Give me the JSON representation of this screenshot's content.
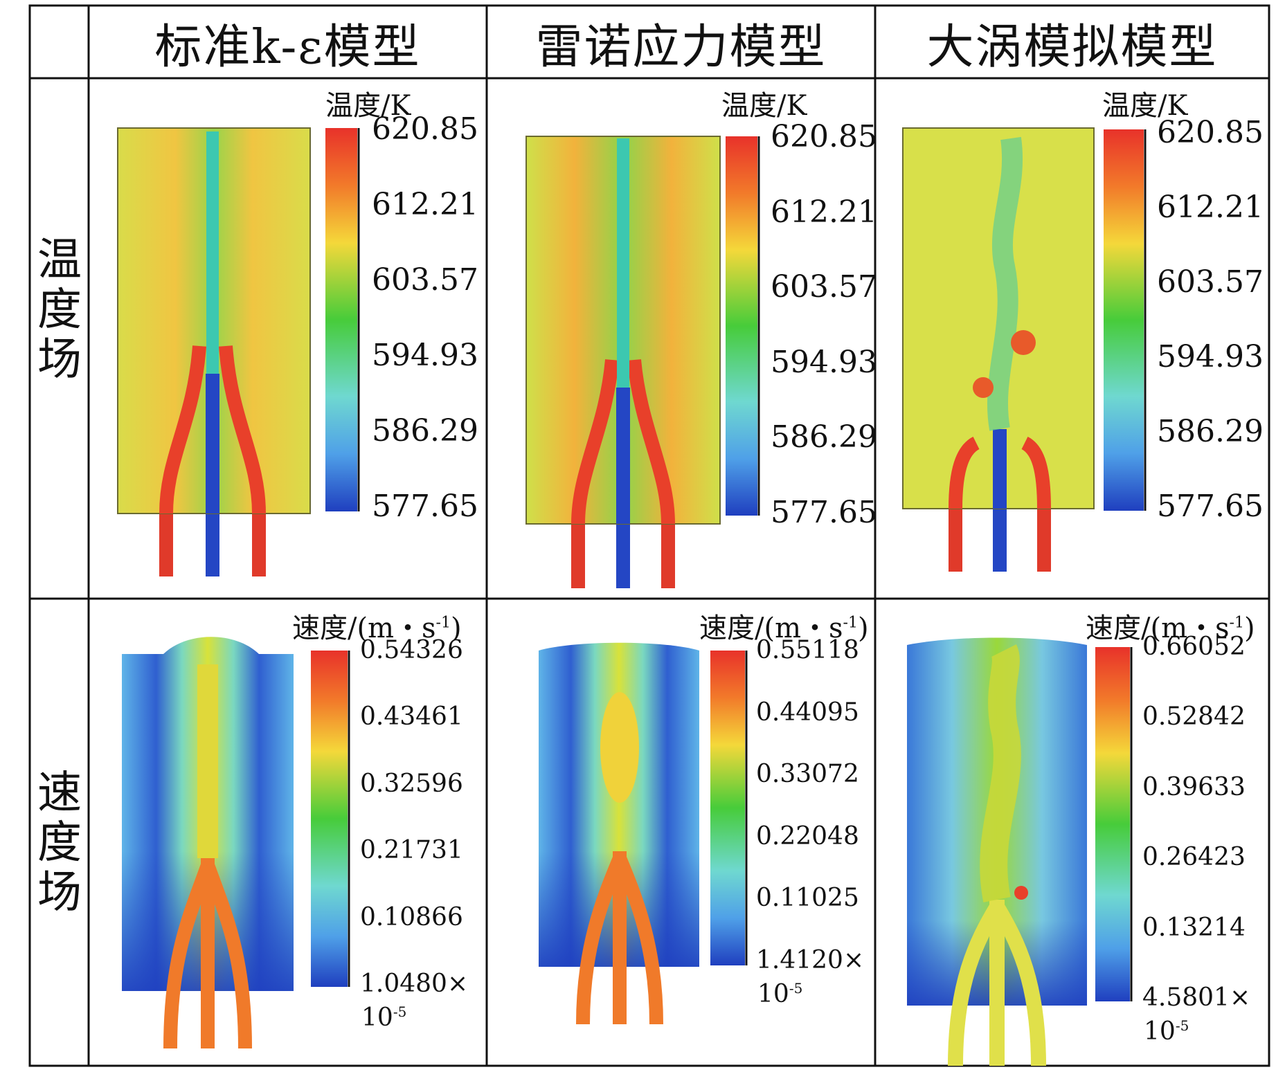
{
  "column_headers": [
    "标准k-ε模型",
    "雷诺应力模型",
    "大涡模拟模型"
  ],
  "row_labels": {
    "temperature": "温度场",
    "velocity": "速度场"
  },
  "temperature": {
    "colorbar_title": "温度/K",
    "ticks": [
      "620.85",
      "612.21",
      "603.57",
      "594.93",
      "586.29",
      "577.65"
    ]
  },
  "velocity": {
    "colorbar_title_base": "速度/(m・s",
    "colorbar_title_sup": "-1",
    "colorbar_title_end": ")",
    "exponent_label": "10",
    "exponent_sup": "-5",
    "panels": [
      {
        "ticks": [
          "0.54326",
          "0.43461",
          "0.32596",
          "0.21731",
          "0.10866",
          "1.0480×"
        ]
      },
      {
        "ticks": [
          "0.55118",
          "0.44095",
          "0.33072",
          "0.22048",
          "0.11025",
          "1.4120×"
        ]
      },
      {
        "ticks": [
          "0.66052",
          "0.52842",
          "0.39633",
          "0.26423",
          "0.13214",
          "4.5801×"
        ]
      }
    ]
  },
  "colors": {
    "jet_low": "#1f3fbf",
    "jet_mid": "#38d038",
    "jet_high": "#e8322a"
  }
}
